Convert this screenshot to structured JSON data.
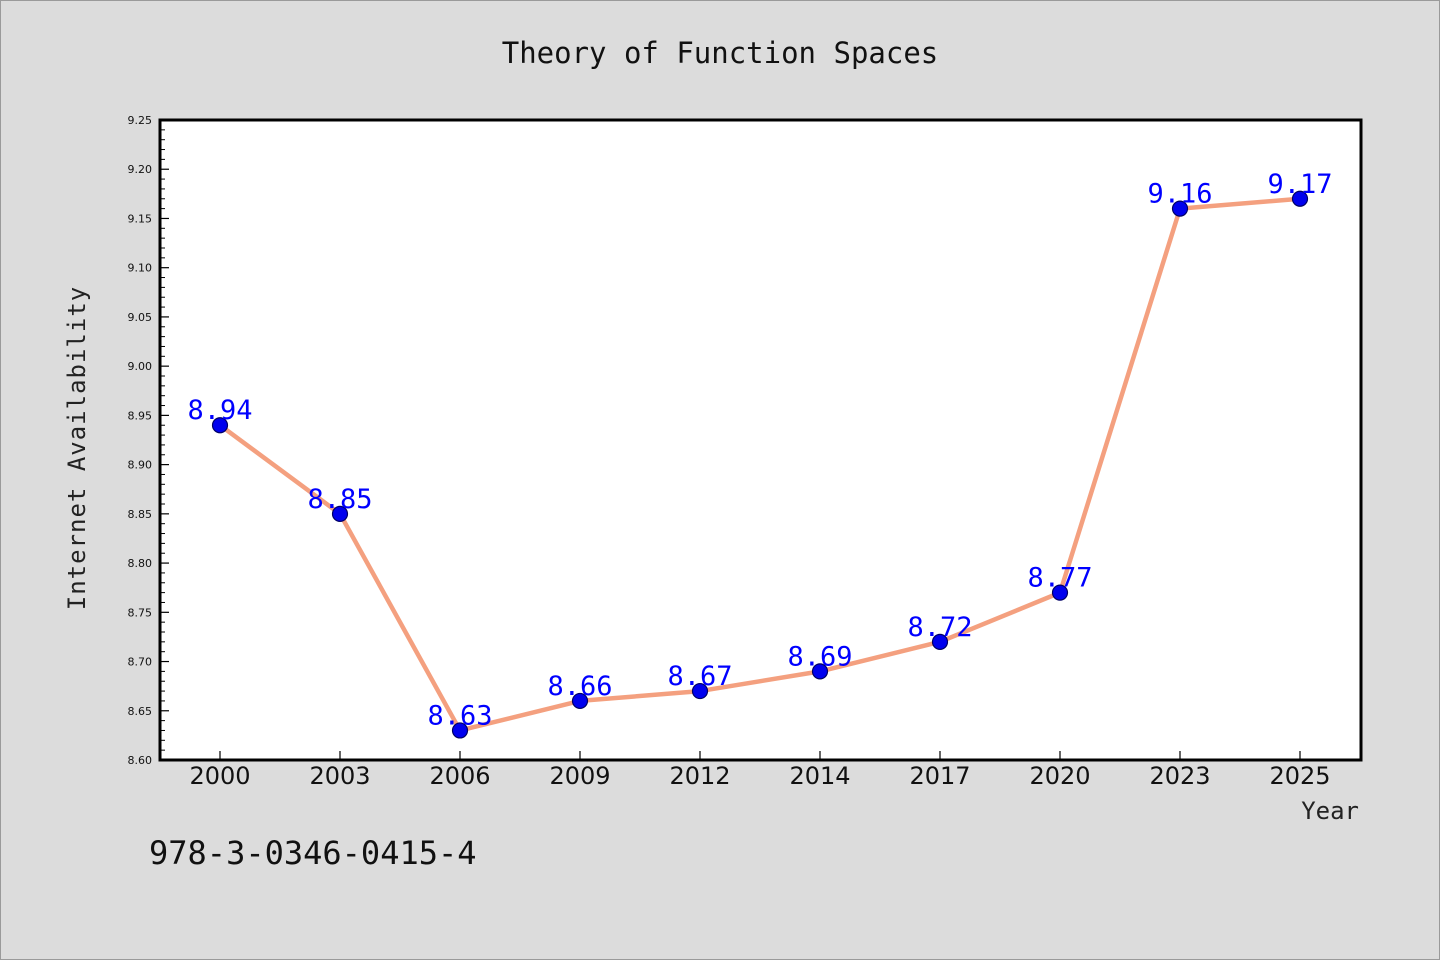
{
  "chart_data": {
    "type": "line",
    "title": "Theory of Function Spaces",
    "xlabel": "Year",
    "ylabel": "Internet Availability",
    "categories": [
      "2000",
      "2003",
      "2006",
      "2009",
      "2012",
      "2014",
      "2017",
      "2020",
      "2023",
      "2025"
    ],
    "series": [
      {
        "values": [
          8.94,
          8.85,
          8.63,
          8.66,
          8.67,
          8.69,
          8.72,
          8.77,
          9.16,
          9.17
        ]
      }
    ],
    "data_labels": [
      "8.94",
      "8.85",
      "8.63",
      "8.66",
      "8.67",
      "8.69",
      "8.72",
      "8.77",
      "9.16",
      "9.17"
    ],
    "ylim": [
      8.6,
      9.25
    ],
    "yticks": [
      "8.60",
      "8.65",
      "8.70",
      "8.75",
      "8.80",
      "8.85",
      "8.90",
      "8.95",
      "9.00",
      "9.05",
      "9.10",
      "9.15",
      "9.20",
      "9.25"
    ],
    "grid": false,
    "colors": {
      "line": "#f4a07f",
      "marker_fill": "#0000ee",
      "marker_edge": "#000066",
      "data_label": "#0000ff",
      "plot_bg": "#ffffff",
      "page_bg": "#dcdcdc"
    }
  },
  "annotation": {
    "isbn": "978-3-0346-0415-4"
  }
}
